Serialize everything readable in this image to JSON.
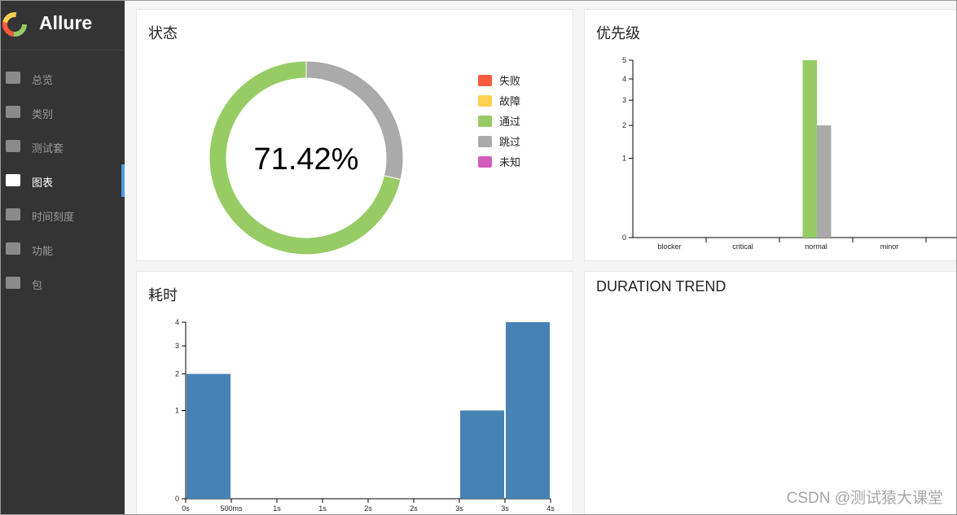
{
  "sidebar": {
    "logo": "Allure",
    "nav": [
      "总览",
      "类别",
      "测试套",
      "图表",
      "时间刻度",
      "功能",
      "包"
    ],
    "active": 3
  },
  "chart_data": [
    {
      "type": "pie",
      "title": "状态",
      "center_label": "71.42%",
      "categories": [
        "失败",
        "故障",
        "通过",
        "跳过",
        "未知"
      ],
      "values": [
        0,
        0,
        5,
        2,
        0
      ],
      "colors": [
        "#fd5a3e",
        "#ffd050",
        "#97cc64",
        "#aaaaaa",
        "#d35ebe"
      ],
      "legend": "right"
    },
    {
      "type": "bar",
      "title": "优先级",
      "categories": [
        "blocker",
        "critical",
        "normal",
        "minor",
        null
      ],
      "series": [
        {
          "color": "#97cc64",
          "values": [
            0,
            0,
            5,
            0,
            0
          ]
        },
        {
          "color": "#aaaaaa",
          "values": [
            0,
            0,
            2,
            0,
            0
          ]
        }
      ],
      "yscale": "sqrt",
      "ylim": [
        0,
        5
      ],
      "yticks": [
        0,
        1,
        2,
        3,
        4,
        5
      ]
    },
    {
      "type": "histogram",
      "title": "耗时",
      "bins": [
        0,
        0.5,
        1,
        1.5,
        2,
        2.5,
        3,
        3.5,
        4
      ],
      "values": [
        2,
        0,
        0,
        0,
        0,
        0,
        1,
        4
      ],
      "color": "#4682b4",
      "xlim": [
        0,
        4
      ],
      "xticks": [
        {
          "value": 0,
          "label": "0s"
        },
        {
          "value": 0.5,
          "label": "500ms"
        },
        {
          "value": 1,
          "label": "1s"
        },
        {
          "value": 1.5,
          "label": "1s"
        },
        {
          "value": 2,
          "label": "2s"
        },
        {
          "value": 2.5,
          "label": "2s"
        },
        {
          "value": 3,
          "label": "3s"
        },
        {
          "value": 3.5,
          "label": "3s"
        },
        {
          "value": 4,
          "label": "4s"
        }
      ],
      "yscale": "sqrt",
      "ylim": [
        0,
        4
      ],
      "yticks": [
        0,
        1,
        2,
        3,
        4
      ]
    }
  ],
  "trend": {
    "title": "DURATION TREND"
  },
  "watermark": "CSDN @测试猿大课堂"
}
